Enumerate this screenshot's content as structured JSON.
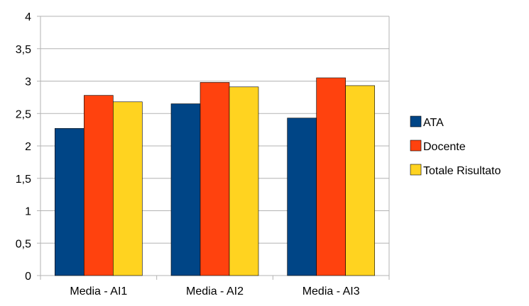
{
  "chart_data": {
    "type": "bar",
    "categories": [
      "Media - AI1",
      "Media - AI2",
      "Media - AI3"
    ],
    "series": [
      {
        "name": "ATA",
        "color": "#004586",
        "values": [
          2.27,
          2.65,
          2.43
        ]
      },
      {
        "name": "Docente",
        "color": "#ff420e",
        "values": [
          2.78,
          2.98,
          3.05
        ]
      },
      {
        "name": "Totale Risultato",
        "color": "#ffd320",
        "values": [
          2.68,
          2.91,
          2.93
        ]
      }
    ],
    "title": "",
    "xlabel": "",
    "ylabel": "",
    "ylim": [
      0,
      4
    ],
    "yticks": [
      "0",
      "0,5",
      "1",
      "1,5",
      "2",
      "2,5",
      "3",
      "3,5",
      "4"
    ],
    "ytick_values": [
      0,
      0.5,
      1,
      1.5,
      2,
      2.5,
      3,
      3.5,
      4
    ],
    "grid": true,
    "legend_position": "right"
  }
}
